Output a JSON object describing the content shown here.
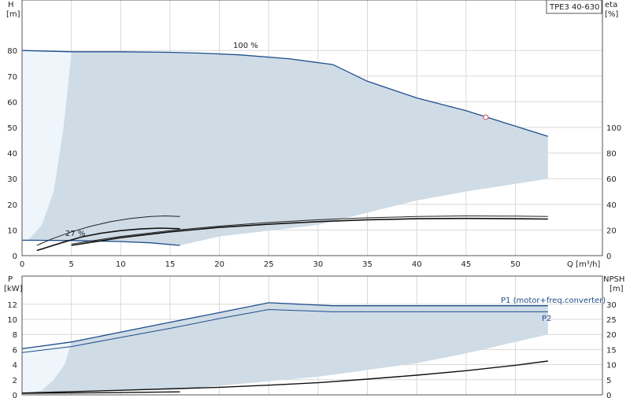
{
  "chart_data": [
    {
      "type": "line",
      "pump_label": "TPE3 40-630",
      "xlabel": "Q [m³/h]",
      "y_left_label": [
        "H",
        "[m]"
      ],
      "y_right_label": [
        "eta",
        "[%]"
      ],
      "xlim": [
        0,
        60
      ],
      "ylim_left": [
        0,
        90
      ],
      "ylim_right": [
        0,
        180
      ],
      "x_ticks": [
        0,
        5,
        10,
        15,
        20,
        25,
        30,
        35,
        40,
        45,
        50
      ],
      "y_left_ticks": [
        0,
        10,
        20,
        30,
        40,
        50,
        60,
        70,
        80
      ],
      "y_right_ticks": [
        0,
        20,
        40,
        60,
        80,
        100
      ],
      "grid": true,
      "annotations": [
        "100 %",
        "27 %"
      ],
      "series": [
        {
          "values": [
            [
              0,
              80
            ],
            [
              5,
              79.5
            ],
            [
              10,
              79.5
            ],
            [
              15,
              79.3
            ],
            [
              18,
              79
            ],
            [
              22,
              78.3
            ],
            [
              27,
              76.8
            ],
            [
              31.5,
              74.5
            ],
            [
              35,
              68
            ],
            [
              40,
              61.5
            ],
            [
              45,
              56.5
            ],
            [
              50,
              50.5
            ],
            [
              53.3,
              46.5
            ]
          ]
        },
        {
          "values": [
            [
              0,
              6
            ],
            [
              5,
              5.9
            ],
            [
              10,
              5.5
            ],
            [
              13,
              5
            ],
            [
              16,
              4
            ]
          ]
        },
        {
          "values": [
            [
              1.5,
              8
            ],
            [
              3,
              13
            ],
            [
              5,
              18.5
            ],
            [
              7,
              23
            ],
            [
              9,
              26.5
            ],
            [
              11,
              29
            ],
            [
              13,
              30.5
            ],
            [
              14.5,
              31
            ],
            [
              16,
              30.5
            ]
          ],
          "axis": "right"
        },
        {
          "values": [
            [
              1.5,
              4
            ],
            [
              4,
              10
            ],
            [
              6,
              14.5
            ],
            [
              8,
              17.5
            ],
            [
              10,
              19.5
            ],
            [
              12,
              20.8
            ],
            [
              14,
              21.5
            ],
            [
              16,
              21
            ]
          ],
          "axis": "right"
        },
        {
          "values": [
            [
              5,
              8
            ],
            [
              10,
              14
            ],
            [
              15,
              18.5
            ],
            [
              20,
              22
            ],
            [
              25,
              24.5
            ],
            [
              30,
              26.5
            ],
            [
              35,
              28
            ],
            [
              40,
              28.8
            ],
            [
              45,
              29
            ],
            [
              50,
              28.8
            ],
            [
              53.3,
              28.5
            ]
          ],
          "axis": "right"
        },
        {
          "values": [
            [
              5,
              9
            ],
            [
              10,
              15
            ],
            [
              15,
              19.5
            ],
            [
              20,
              23
            ],
            [
              25,
              25.8
            ],
            [
              30,
              28
            ],
            [
              35,
              29.5
            ],
            [
              40,
              30.5
            ],
            [
              45,
              31
            ],
            [
              50,
              30.8
            ],
            [
              53.3,
              30.5
            ]
          ],
          "axis": "right"
        }
      ],
      "duty_point": {
        "x": 47,
        "y": 54
      }
    },
    {
      "type": "line",
      "y_left_label": [
        "P",
        "[kW]"
      ],
      "y_right_label": [
        "NPSH",
        "[m]"
      ],
      "xlim": [
        0,
        60
      ],
      "ylim_left": [
        0,
        14
      ],
      "ylim_right": [
        0,
        35
      ],
      "y_left_ticks": [
        0,
        2,
        4,
        6,
        8,
        10,
        12
      ],
      "y_right_ticks": [
        0,
        5,
        10,
        15,
        20,
        25,
        30
      ],
      "grid": true,
      "series": [
        {
          "name": "P1 (motor+freq.converter)",
          "values": [
            [
              0,
              6.1
            ],
            [
              5,
              7
            ],
            [
              10,
              8.3
            ],
            [
              15,
              9.6
            ],
            [
              20,
              10.9
            ],
            [
              25,
              12.2
            ],
            [
              31.5,
              11.8
            ],
            [
              40,
              11.8
            ],
            [
              53.3,
              11.8
            ]
          ]
        },
        {
          "name": "P2",
          "values": [
            [
              0,
              5.6
            ],
            [
              5,
              6.4
            ],
            [
              10,
              7.6
            ],
            [
              15,
              8.8
            ],
            [
              20,
              10.1
            ],
            [
              25,
              11.3
            ],
            [
              31.5,
              11
            ],
            [
              40,
              11
            ],
            [
              53.3,
              11
            ]
          ]
        },
        {
          "values": [
            [
              0,
              0.6
            ],
            [
              10,
              1.5
            ],
            [
              20,
              2.5
            ],
            [
              25,
              3.2
            ],
            [
              30,
              4
            ],
            [
              35,
              5.2
            ],
            [
              40,
              6.5
            ],
            [
              45,
              8
            ],
            [
              50,
              9.8
            ],
            [
              53.3,
              11.2
            ]
          ],
          "axis": "right"
        },
        {
          "values": [
            [
              0,
              0.2
            ],
            [
              5,
              0.25
            ],
            [
              10,
              0.3
            ],
            [
              16,
              0.4
            ]
          ]
        }
      ]
    }
  ]
}
